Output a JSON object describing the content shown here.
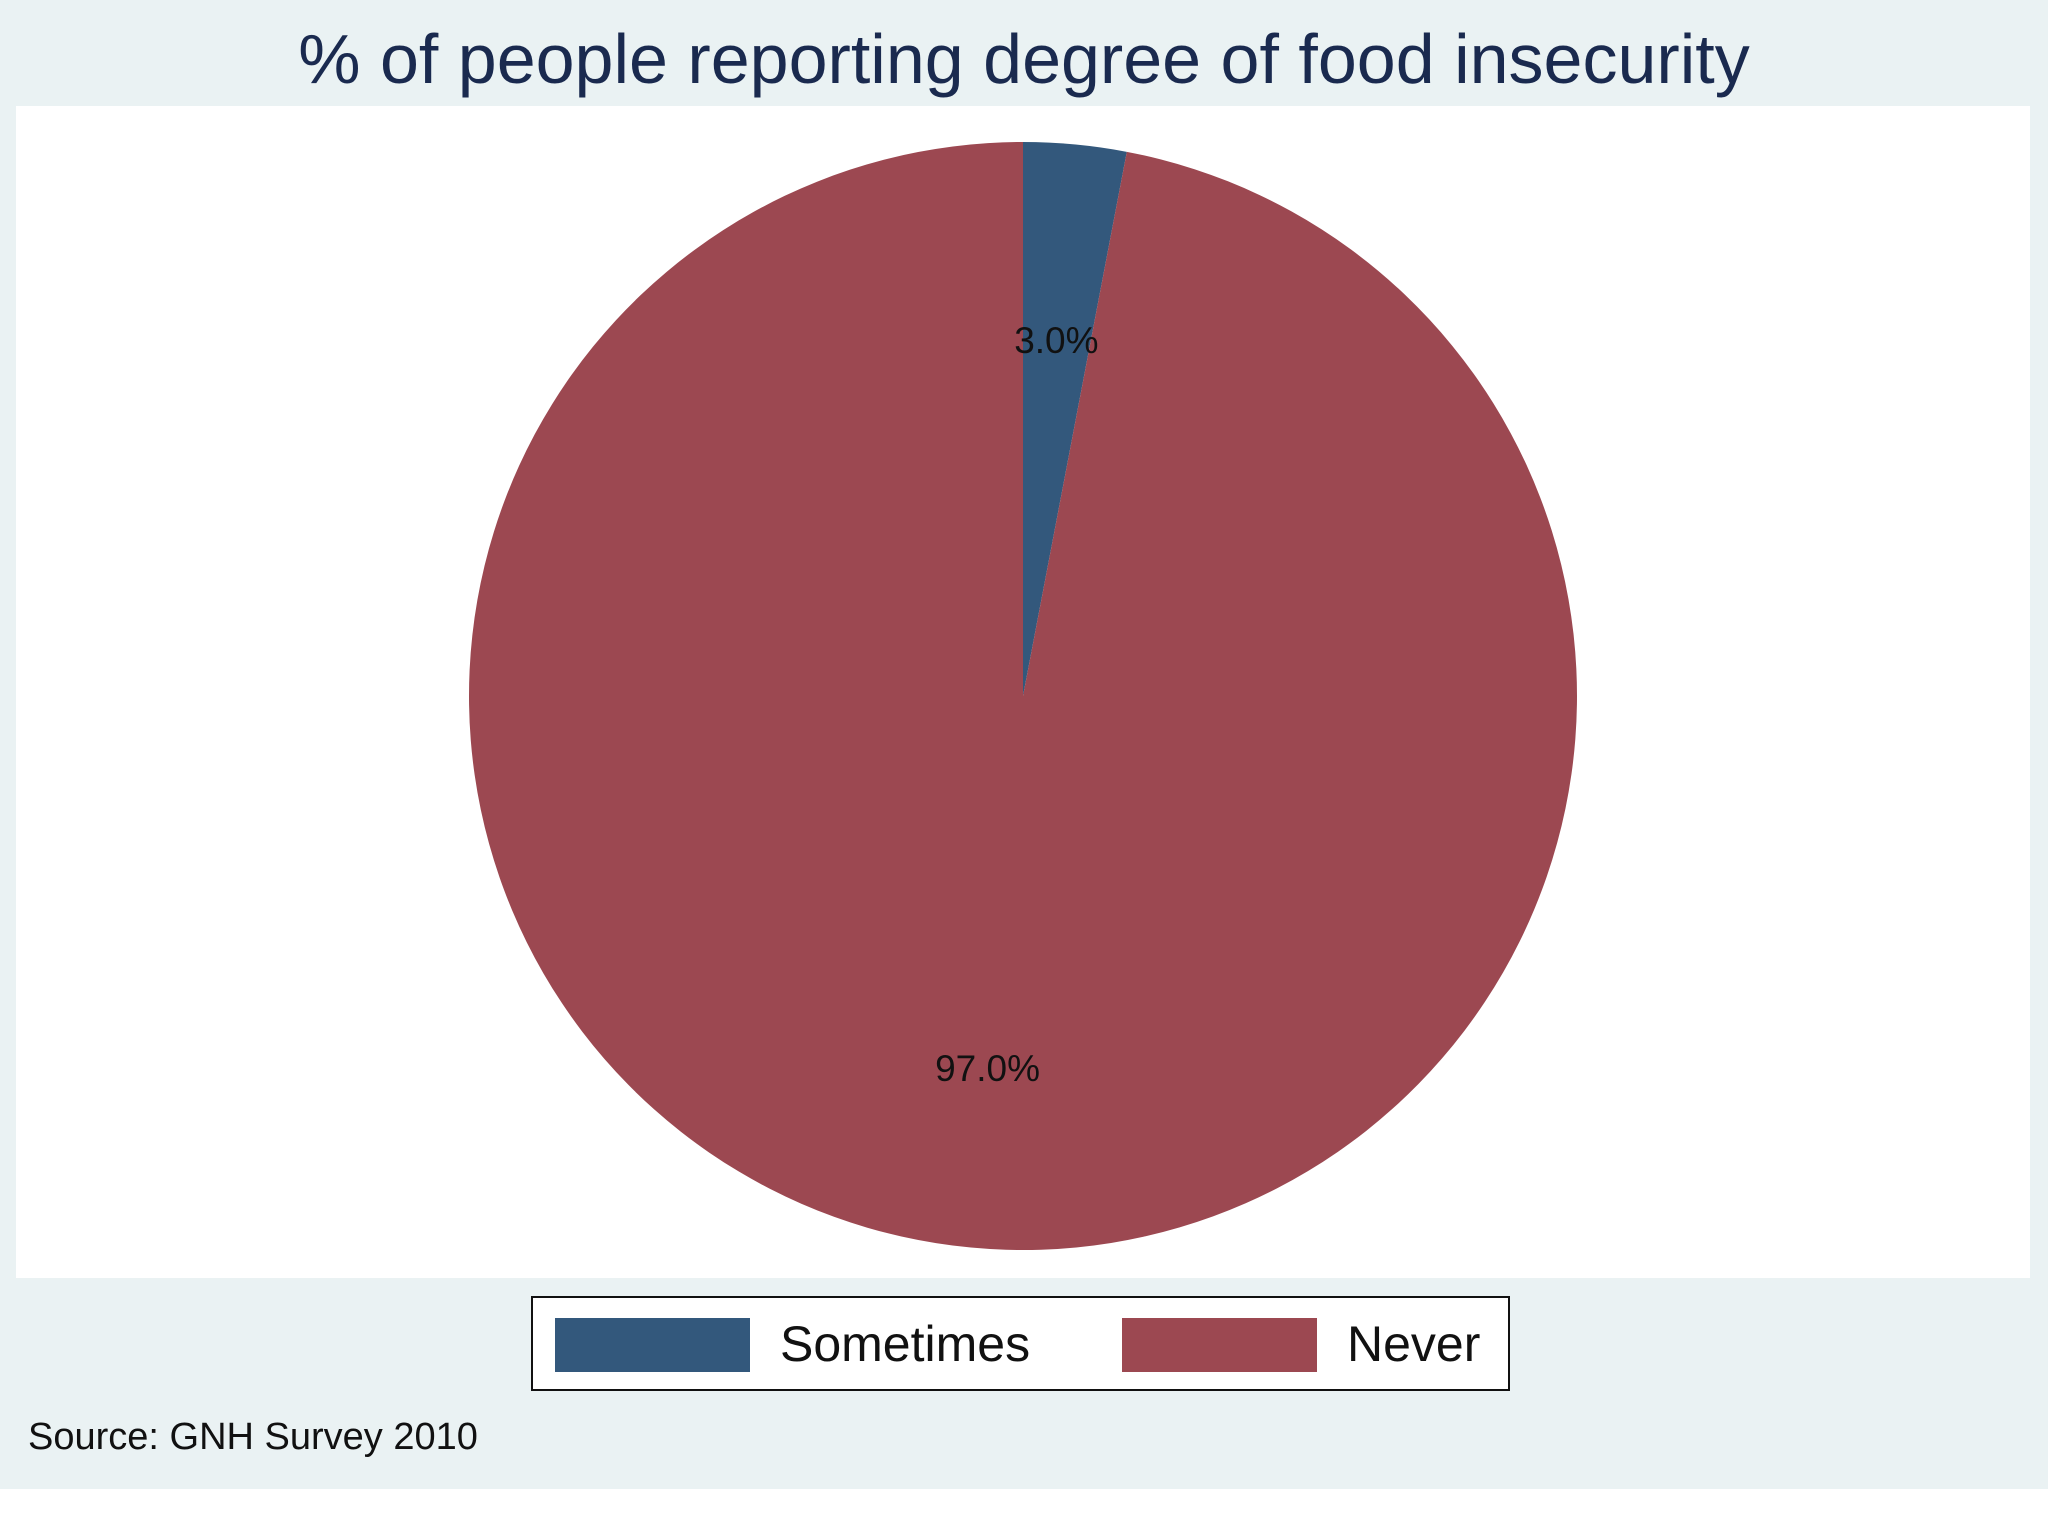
{
  "chart_data": {
    "type": "pie",
    "title": "% of people reporting degree of food insecurity",
    "categories": [
      "Sometimes",
      "Never"
    ],
    "values": [
      3.0,
      97.0
    ],
    "value_labels": [
      "3.0%",
      "97.0%"
    ],
    "colors": [
      "#33587c",
      "#9c4851"
    ],
    "start_angle_deg": 0,
    "direction": "clockwise",
    "legend": {
      "placement": "bottom",
      "entries": [
        "Sometimes",
        "Never"
      ]
    },
    "note": "Source: GNH Survey 2010"
  }
}
